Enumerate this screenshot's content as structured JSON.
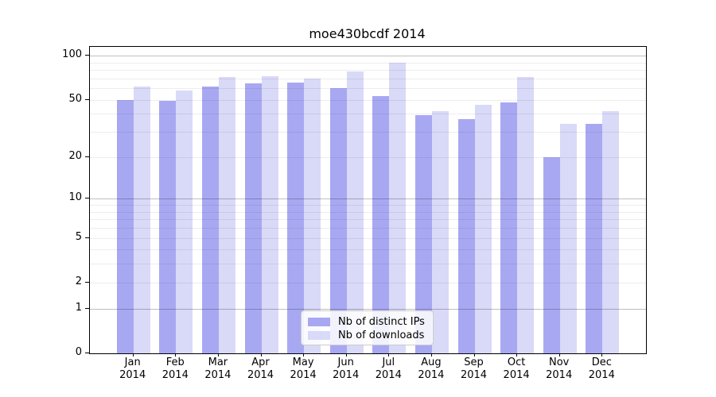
{
  "chart_data": {
    "type": "bar",
    "title": "moe430bcdf 2014",
    "categories": [
      "Jan 2014",
      "Feb 2014",
      "Mar 2014",
      "Apr 2014",
      "May 2014",
      "Jun 2014",
      "Jul 2014",
      "Aug 2014",
      "Sep 2014",
      "Oct 2014",
      "Nov 2014",
      "Dec 2014"
    ],
    "series": [
      {
        "name": "Nb of distinct IPs",
        "color": "#a8a8f2",
        "values": [
          50,
          49,
          62,
          65,
          66,
          60,
          53,
          39,
          37,
          48,
          20,
          34
        ]
      },
      {
        "name": "Nb of downloads",
        "color": "#d9d9f8",
        "values": [
          62,
          58,
          72,
          73,
          70,
          78,
          90,
          42,
          46,
          72,
          34,
          42
        ]
      }
    ],
    "xlabel": "",
    "ylabel": "",
    "yscale": "log1p",
    "ylim": [
      0,
      115
    ],
    "yticks": [
      0,
      1,
      2,
      5,
      10,
      20,
      50,
      100
    ],
    "grid_major_at": [
      1,
      10,
      100
    ],
    "grid_minor_at": [
      2,
      3,
      4,
      5,
      6,
      7,
      8,
      9,
      20,
      30,
      40,
      50,
      60,
      70,
      80,
      90
    ],
    "grid": "horizontal",
    "legend_position": "lower-center"
  }
}
